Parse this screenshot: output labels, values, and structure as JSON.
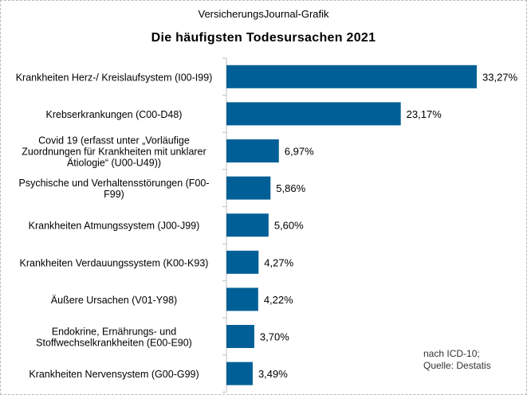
{
  "chart_data": {
    "type": "bar",
    "orientation": "horizontal",
    "source": "VersicherungsJournal-Grafik",
    "title": "Die häufigsten Todesursachen  2021",
    "categories": [
      [
        "Krankheiten Herz-/ Kreislaufsystem (I00-I99)"
      ],
      [
        "Krebserkrankungen (C00-D48)"
      ],
      [
        "Covid  19 (erfasst unter „Vorläufige",
        "Zuordnungen  für Krankheiten mit unklarer",
        "Ätiologie“ (U00-U49))"
      ],
      [
        "Psychische und Verhaltensstörungen (F00-",
        "F99)"
      ],
      [
        "Krankheiten Atmungssystem (J00-J99)"
      ],
      [
        "Krankheiten Verdauungssystem (K00-K93)"
      ],
      [
        "Äußere Ursachen (V01-Y98)"
      ],
      [
        "Endokrine, Ernährungs- und",
        "Stoffwechselkrankheiten (E00-E90)"
      ],
      [
        "Krankheiten Nervensystem (G00-G99)"
      ]
    ],
    "values": [
      33.27,
      23.17,
      6.97,
      5.86,
      5.6,
      4.27,
      4.22,
      3.7,
      3.49
    ],
    "data_labels": [
      "33,27%",
      "23,17%",
      "6,97%",
      "5,86%",
      "5,60%",
      "4,27%",
      "4,22%",
      "3,70%",
      "3,49%"
    ],
    "bar_color": "#005f96",
    "xlim": [
      0,
      35
    ],
    "grid": false,
    "note": [
      "nach ICD-10;",
      "Quelle: Destatis"
    ]
  }
}
